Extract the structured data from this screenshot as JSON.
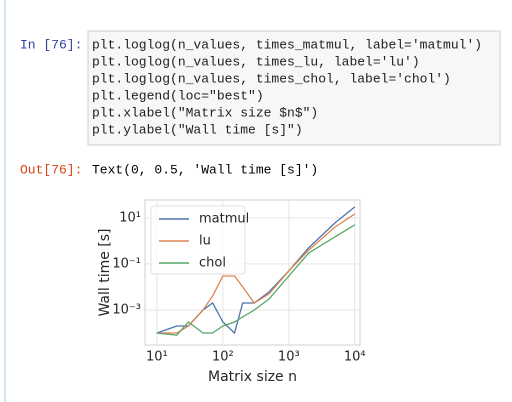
{
  "cell": {
    "input_prompt": "In [76]:",
    "code": [
      "plt.loglog(n_values, times_matmul, label='matmul')",
      "plt.loglog(n_values, times_lu, label='lu')",
      "plt.loglog(n_values, times_chol, label='chol')",
      "plt.legend(loc=\"best\")",
      "plt.xlabel(\"Matrix size $n$\")",
      "plt.ylabel(\"Wall time [s]\")"
    ],
    "output_prompt": "Out[76]:",
    "output_text": "Text(0, 0.5, 'Wall time [s]')"
  },
  "chart_data": {
    "type": "line",
    "xlabel": "Matrix size n",
    "ylabel": "Wall time [s]",
    "xscale": "log",
    "yscale": "log",
    "x": [
      10,
      20,
      30,
      50,
      70,
      100,
      150,
      200,
      300,
      500,
      1000,
      2000,
      5000,
      10000
    ],
    "series": [
      {
        "name": "matmul",
        "color": "#4c72b0",
        "values": [
          0.0001,
          0.0002,
          0.0002,
          0.001,
          0.002,
          0.0003,
          0.0001,
          0.002,
          0.002,
          0.006,
          0.05,
          0.5,
          6,
          30
        ]
      },
      {
        "name": "lu",
        "color": "#dd8452",
        "values": [
          0.0001,
          0.0001,
          0.0002,
          0.001,
          0.004,
          0.03,
          0.03,
          0.01,
          0.002,
          0.005,
          0.05,
          0.4,
          4,
          15
        ]
      },
      {
        "name": "chol",
        "color": "#55a868",
        "values": [
          0.0001,
          8e-05,
          0.0003,
          0.0001,
          0.0001,
          0.0002,
          0.0003,
          0.0005,
          0.001,
          0.003,
          0.03,
          0.3,
          1.5,
          5
        ]
      }
    ],
    "xlim": [
      6.6,
      12000
    ],
    "ylim": [
      3e-05,
      60
    ],
    "xticks": [
      {
        "value": 10,
        "label": "10¹"
      },
      {
        "value": 100,
        "label": "10²"
      },
      {
        "value": 1000,
        "label": "10³"
      },
      {
        "value": 10000,
        "label": "10⁴"
      }
    ],
    "yticks": [
      {
        "value": 0.001,
        "label": "10⁻³"
      },
      {
        "value": 0.1,
        "label": "10⁻¹"
      },
      {
        "value": 10,
        "label": "10¹"
      }
    ],
    "grid": true,
    "legend": "upper-left"
  }
}
